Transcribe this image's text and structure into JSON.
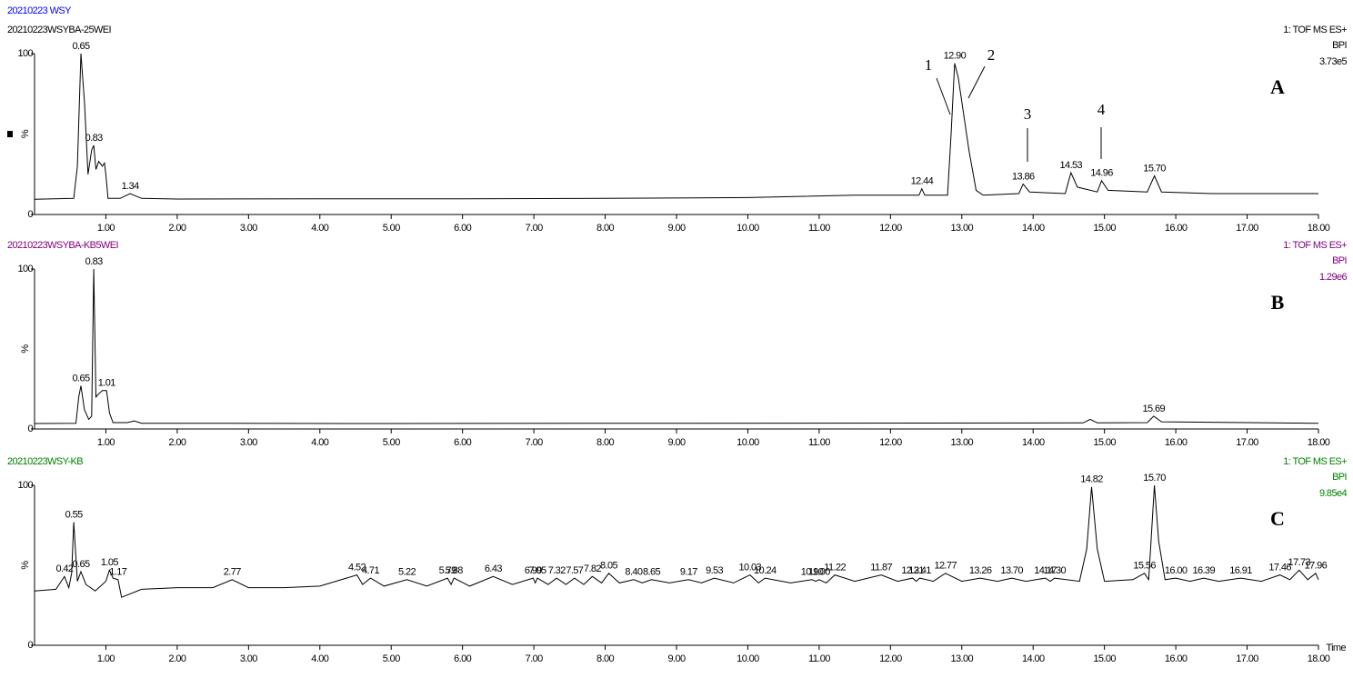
{
  "chart_data": [
    {
      "type": "line",
      "title": "20210223 WSY",
      "title_color": "#0000ff",
      "sample": "20210223WSYBA-25WEI",
      "text_color": "#000000",
      "mode": "1: TOF MS ES+",
      "trace": "BPI",
      "intensity": "3.73e5",
      "panel": "A",
      "y_label": "%",
      "color": "#000000",
      "annotations": [
        "1",
        "2",
        "3",
        "4"
      ],
      "x": [
        0,
        0.55,
        0.6,
        0.65,
        0.7,
        0.75,
        0.8,
        0.83,
        0.86,
        0.9,
        0.95,
        0.98,
        1.0,
        1.03,
        1.2,
        1.34,
        1.5,
        2,
        4,
        6,
        8,
        10,
        11.5,
        12.4,
        12.44,
        12.48,
        12.8,
        12.85,
        12.9,
        12.95,
        13,
        13.1,
        13.2,
        13.3,
        13.8,
        13.86,
        13.95,
        14.45,
        14.53,
        14.62,
        14.9,
        14.96,
        15.05,
        15.6,
        15.7,
        15.8,
        16.5,
        18
      ],
      "values": [
        9.5,
        10,
        30,
        100,
        70,
        25,
        40,
        43,
        28,
        33,
        30,
        32,
        25,
        10,
        10,
        13,
        10,
        9.6,
        9.8,
        9.8,
        10,
        10.5,
        12,
        12,
        16,
        12,
        12,
        50,
        94,
        85,
        70,
        40,
        15,
        12,
        13,
        19,
        14,
        13,
        26,
        17,
        14,
        21,
        15,
        14,
        24,
        14,
        13,
        13
      ],
      "peaks": {
        "x": [
          0.65,
          0.83,
          1.34,
          12.44,
          12.9,
          13.86,
          14.53,
          14.96,
          15.7
        ],
        "labels": [
          "0.65",
          "0.83",
          "1.34",
          "12.44",
          "12.90",
          "13.86",
          "14.53",
          "14.96",
          "15.70"
        ]
      },
      "xlim": [
        0,
        18
      ],
      "ylim": [
        0,
        100
      ],
      "yticks": [
        0,
        100
      ],
      "xticks": [
        {
          "value": 1,
          "label": "1.00"
        },
        {
          "value": 2,
          "label": "2.00"
        },
        {
          "value": 3,
          "label": "3.00"
        },
        {
          "value": 4,
          "label": "4.00"
        },
        {
          "value": 5,
          "label": "5.00"
        },
        {
          "value": 6,
          "label": "6.00"
        },
        {
          "value": 7,
          "label": "7.00"
        },
        {
          "value": 8,
          "label": "8.00"
        },
        {
          "value": 9,
          "label": "9.00"
        },
        {
          "value": 10,
          "label": "10.00"
        },
        {
          "value": 11,
          "label": "11.00"
        },
        {
          "value": 12,
          "label": "12.00"
        },
        {
          "value": 13,
          "label": "13.00"
        },
        {
          "value": 14,
          "label": "14.00"
        },
        {
          "value": 15,
          "label": "15.00"
        },
        {
          "value": 16,
          "label": "16.00"
        },
        {
          "value": 17,
          "label": "17.00"
        },
        {
          "value": 18,
          "label": "18.00"
        }
      ]
    },
    {
      "type": "line",
      "sample": "20210223WSYBA-KB5WEI",
      "text_color": "#800080",
      "mode": "1: TOF MS ES+",
      "trace": "BPI",
      "intensity": "1.29e6",
      "panel": "B",
      "y_label": "%",
      "color": "#000000",
      "x": [
        0,
        0.58,
        0.62,
        0.65,
        0.7,
        0.76,
        0.8,
        0.83,
        0.86,
        0.9,
        0.95,
        1.01,
        1.05,
        1.1,
        1.3,
        1.4,
        1.5,
        5,
        14.7,
        14.8,
        14.9,
        15.6,
        15.69,
        15.8,
        18
      ],
      "values": [
        3.4,
        3.5,
        20,
        27,
        12,
        6,
        8,
        100,
        20,
        22,
        24,
        24,
        10,
        4,
        4,
        5,
        3.6,
        3.4,
        3.8,
        6,
        3.8,
        4,
        8,
        4.5,
        3.6
      ],
      "peaks": {
        "x": [
          0.65,
          0.83,
          1.01,
          15.69
        ],
        "labels": [
          "0.65",
          "0.83",
          "1.01",
          "15.69"
        ]
      },
      "xlim": [
        0,
        18
      ],
      "ylim": [
        0,
        100
      ],
      "yticks": [
        0,
        100
      ],
      "xticks": [
        {
          "value": 1,
          "label": "1.00"
        },
        {
          "value": 2,
          "label": "2.00"
        },
        {
          "value": 3,
          "label": "3.00"
        },
        {
          "value": 4,
          "label": "4.00"
        },
        {
          "value": 5,
          "label": "5.00"
        },
        {
          "value": 6,
          "label": "6.00"
        },
        {
          "value": 7,
          "label": "7.00"
        },
        {
          "value": 8,
          "label": "8.00"
        },
        {
          "value": 9,
          "label": "9.00"
        },
        {
          "value": 10,
          "label": "10.00"
        },
        {
          "value": 11,
          "label": "11.00"
        },
        {
          "value": 12,
          "label": "12.00"
        },
        {
          "value": 13,
          "label": "13.00"
        },
        {
          "value": 14,
          "label": "14.00"
        },
        {
          "value": 15,
          "label": "15.00"
        },
        {
          "value": 16,
          "label": "16.00"
        },
        {
          "value": 17,
          "label": "17.00"
        },
        {
          "value": 18,
          "label": "18.00"
        }
      ]
    },
    {
      "type": "line",
      "sample": "20210223WSY-KB",
      "text_color": "#008000",
      "mode": "1: TOF MS ES+",
      "trace": "BPI",
      "intensity": "9.85e4",
      "panel": "C",
      "y_label": "%",
      "x_label": "Time",
      "color": "#000000",
      "x": [
        0,
        0.3,
        0.42,
        0.48,
        0.52,
        0.55,
        0.6,
        0.65,
        0.72,
        0.85,
        1.0,
        1.05,
        1.1,
        1.17,
        1.22,
        1.5,
        2.0,
        2.5,
        2.77,
        3.0,
        3.5,
        4.0,
        4.52,
        4.6,
        4.71,
        4.9,
        5.22,
        5.5,
        5.79,
        5.84,
        5.88,
        6.1,
        6.43,
        6.7,
        6.99,
        7.02,
        7.05,
        7.2,
        7.32,
        7.45,
        7.57,
        7.7,
        7.82,
        7.95,
        8.05,
        8.2,
        8.4,
        8.52,
        8.65,
        8.9,
        9.17,
        9.35,
        9.53,
        9.8,
        10.03,
        10.15,
        10.24,
        10.6,
        10.9,
        10.95,
        11.0,
        11.1,
        11.22,
        11.5,
        11.87,
        12.1,
        12.31,
        12.36,
        12.41,
        12.6,
        12.77,
        13.0,
        13.26,
        13.5,
        13.7,
        13.9,
        14.17,
        14.24,
        14.3,
        14.65,
        14.75,
        14.82,
        14.9,
        15.0,
        15.4,
        15.56,
        15.62,
        15.66,
        15.7,
        15.76,
        15.85,
        16.0,
        16.2,
        16.39,
        16.6,
        16.91,
        17.2,
        17.46,
        17.6,
        17.73,
        17.85,
        17.96,
        18.0
      ],
      "values": [
        34,
        35,
        43,
        36,
        45,
        77,
        40,
        46,
        38,
        34,
        40,
        47,
        42,
        41,
        30,
        35,
        36,
        36,
        41,
        36,
        36,
        37,
        44,
        38,
        42,
        37,
        41,
        37,
        42,
        38,
        42,
        37,
        43,
        38,
        42,
        39,
        42,
        38,
        42,
        38,
        42,
        38,
        43,
        39,
        45,
        39,
        41,
        39,
        41,
        39,
        41,
        39,
        42,
        39,
        44,
        39,
        42,
        39,
        41,
        40,
        41,
        39,
        44,
        40,
        44,
        40,
        42,
        40,
        42,
        40,
        45,
        40,
        42,
        40,
        42,
        40,
        42,
        40,
        42,
        40,
        60,
        99,
        60,
        40,
        41,
        45,
        41,
        70,
        100,
        65,
        41,
        42,
        40,
        42,
        40,
        42,
        40,
        44,
        41,
        47,
        41,
        45,
        41
      ],
      "peaks": {
        "x": [
          0.42,
          0.55,
          0.65,
          1.05,
          1.17,
          2.77,
          4.52,
          4.71,
          5.22,
          5.79,
          5.88,
          6.43,
          6.99,
          7.05,
          7.32,
          7.57,
          7.82,
          8.05,
          8.4,
          8.65,
          9.17,
          9.53,
          10.03,
          10.24,
          10.9,
          11.0,
          11.22,
          11.87,
          12.31,
          12.41,
          12.77,
          13.26,
          13.7,
          14.17,
          14.3,
          14.82,
          15.56,
          15.7,
          16.0,
          16.39,
          16.91,
          17.46,
          17.73,
          17.96
        ],
        "labels": [
          "0.42",
          "0.55",
          "0.65",
          "1.05",
          "1.17",
          "2.77",
          "4.52",
          "4.71",
          "5.22",
          "5.79",
          "5.88",
          "6.43",
          "6.99",
          "7.05",
          "7.32",
          "7.57",
          "7.82",
          "8.05",
          "8.40",
          "8.65",
          "9.17",
          "9.53",
          "10.03",
          "10.24",
          "10.90",
          "11.00",
          "11.22",
          "11.87",
          "12.31",
          "12.41",
          "12.77",
          "13.26",
          "13.70",
          "14.17",
          "14.30",
          "14.82",
          "15.56",
          "15.70",
          "16.00",
          "16.39",
          "16.91",
          "17.46",
          "17.73",
          "17.96"
        ]
      },
      "xlim": [
        0,
        18
      ],
      "ylim": [
        0,
        100
      ],
      "yticks": [
        0,
        100
      ],
      "xticks": [
        {
          "value": 1,
          "label": "1.00"
        },
        {
          "value": 2,
          "label": "2.00"
        },
        {
          "value": 3,
          "label": "3.00"
        },
        {
          "value": 4,
          "label": "4.00"
        },
        {
          "value": 5,
          "label": "5.00"
        },
        {
          "value": 6,
          "label": "6.00"
        },
        {
          "value": 7,
          "label": "7.00"
        },
        {
          "value": 8,
          "label": "8.00"
        },
        {
          "value": 9,
          "label": "9.00"
        },
        {
          "value": 10,
          "label": "10.00"
        },
        {
          "value": 11,
          "label": "11.00"
        },
        {
          "value": 12,
          "label": "12.00"
        },
        {
          "value": 13,
          "label": "13.00"
        },
        {
          "value": 14,
          "label": "14.00"
        },
        {
          "value": 15,
          "label": "15.00"
        },
        {
          "value": 16,
          "label": "16.00"
        },
        {
          "value": 17,
          "label": "17.00"
        },
        {
          "value": 18,
          "label": "18.00"
        }
      ]
    }
  ]
}
